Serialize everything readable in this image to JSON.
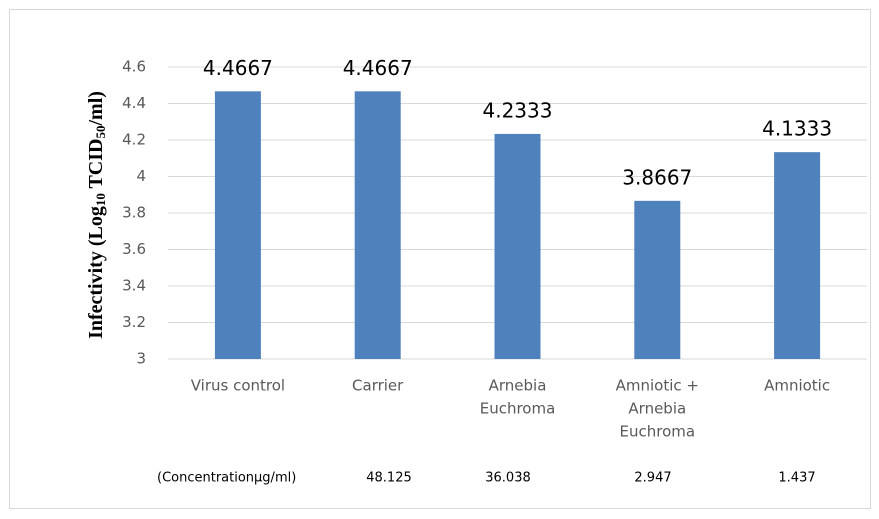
{
  "chart_data": {
    "type": "bar",
    "y_label": [
      "Infectivity (Log",
      "10",
      " TCID",
      "50",
      "/ml)"
    ],
    "categories": [
      [
        "Virus control"
      ],
      [
        "Carrier"
      ],
      [
        "Arnebia",
        "Euchroma"
      ],
      [
        "Amniotic +",
        "Arnebia",
        "Euchroma"
      ],
      [
        "Amniotic"
      ]
    ],
    "values": [
      4.4667,
      4.4667,
      4.2333,
      3.8667,
      4.1333
    ],
    "color": "#4f81bd",
    "ylim": [
      3,
      4.6
    ],
    "yticks": [
      3,
      3.2,
      3.4,
      3.6,
      3.8,
      4,
      4.2,
      4.4,
      4.6
    ],
    "grid": true,
    "concentration_label": "(Concentrationµg/ml)",
    "concentrations": [
      48.125,
      36.038,
      2.947,
      1.437
    ]
  }
}
